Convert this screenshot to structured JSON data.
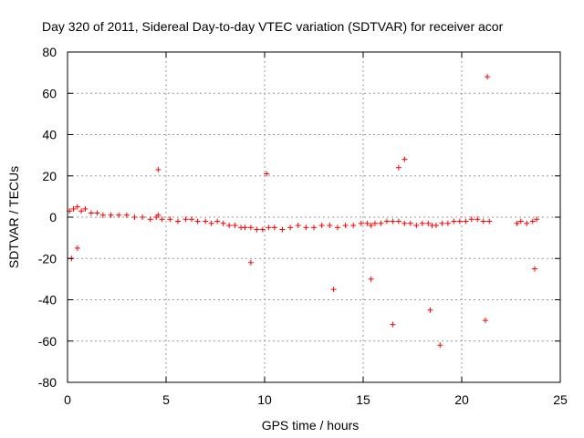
{
  "chart_data": {
    "type": "scatter",
    "title": "Day 320 of 2011, Sidereal Day-to-day VTEC variation (SDTVAR) for receiver acor",
    "xlabel": "GPS time / hours",
    "ylabel": "SDTVAR / TECUs",
    "xlim": [
      0,
      25
    ],
    "ylim": [
      -80,
      80
    ],
    "xticks": [
      0,
      5,
      10,
      15,
      20,
      25
    ],
    "yticks": [
      -80,
      -60,
      -40,
      -20,
      0,
      20,
      40,
      60,
      80
    ],
    "grid": true,
    "marker": "+",
    "color": "#ff0000",
    "series": [
      {
        "name": "SDTVAR",
        "x": [
          0.1,
          0.3,
          0.5,
          0.7,
          0.9,
          1.2,
          1.5,
          1.8,
          2.2,
          2.6,
          3.0,
          3.4,
          3.8,
          4.2,
          4.5,
          4.6,
          4.8,
          5.2,
          5.6,
          6.0,
          6.3,
          6.6,
          7.0,
          7.3,
          7.6,
          7.9,
          8.2,
          8.5,
          8.8,
          9.0,
          9.3,
          9.6,
          9.9,
          10.2,
          10.5,
          10.9,
          11.3,
          11.7,
          12.1,
          12.5,
          12.9,
          13.3,
          13.7,
          14.1,
          14.5,
          14.9,
          15.2,
          15.4,
          15.6,
          15.9,
          16.2,
          16.5,
          16.8,
          17.1,
          17.4,
          17.7,
          18.0,
          18.3,
          18.5,
          18.7,
          19.0,
          19.3,
          19.6,
          19.9,
          20.2,
          20.5,
          20.8,
          21.1,
          21.4,
          22.8,
          23.0,
          23.3,
          23.6,
          23.8,
          0.2,
          0.5,
          4.6,
          21.3,
          9.3,
          13.5,
          16.5,
          18.9,
          21.2,
          16.8,
          17.1,
          10.1,
          15.4,
          18.4,
          23.7
        ],
        "y": [
          3,
          4,
          5,
          3,
          4,
          2,
          2,
          1,
          1,
          1,
          1,
          0,
          0,
          -1,
          0,
          1,
          -1,
          -1,
          -2,
          -1,
          -1,
          -2,
          -2,
          -3,
          -2,
          -3,
          -4,
          -4,
          -5,
          -5,
          -5,
          -6,
          -6,
          -5,
          -5,
          -6,
          -5,
          -4,
          -5,
          -5,
          -4,
          -4,
          -5,
          -4,
          -4,
          -3,
          -3,
          -4,
          -3,
          -3,
          -2,
          -2,
          -2,
          -3,
          -3,
          -4,
          -3,
          -3,
          -4,
          -4,
          -3,
          -3,
          -2,
          -2,
          -2,
          -1,
          -1,
          -2,
          -2,
          -3,
          -2,
          -3,
          -2,
          -1,
          -20,
          -15,
          23,
          68,
          -22,
          -35,
          -52,
          -62,
          -50,
          24,
          28,
          21,
          -30,
          -45,
          -25
        ]
      }
    ]
  }
}
